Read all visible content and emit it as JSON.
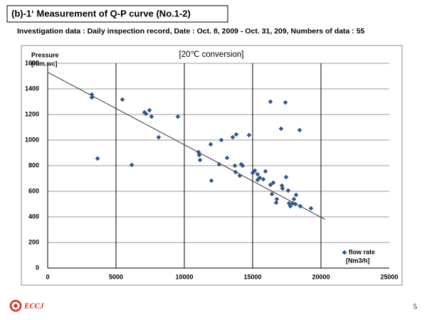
{
  "header": {
    "title": "(b)-1‘ Measurement of Q-P curve (No.1-2)",
    "subtitle": "Investigation data :   Daily inspection record, Date : Oct. 8, 2009 -  Oct. 31, 209, Numbers of data : 55"
  },
  "chart_data": {
    "type": "scatter",
    "title": "[20℃ conversion]",
    "y_label": "Pressure",
    "y_unit": "[mm.wc]",
    "legend_unit": "[Nm3/h]",
    "legend": "lower right",
    "xlim": [
      0,
      25000
    ],
    "ylim": [
      0,
      1600
    ],
    "xticks": [
      0,
      5000,
      10000,
      15000,
      20000,
      25000
    ],
    "yticks": [
      0,
      200,
      400,
      600,
      800,
      1000,
      1200,
      1400,
      1600
    ],
    "grid": true,
    "x_grid_color": "#000000",
    "y_grid_color": "#999999",
    "series": [
      {
        "name": "flow rate",
        "color": "#2e5a8e",
        "x": [
          3230,
          3230,
          3650,
          5470,
          6150,
          7080,
          7190,
          7450,
          7600,
          8120,
          9530,
          11040,
          11090,
          11150,
          11930,
          11980,
          12550,
          12710,
          13130,
          13540,
          13700,
          13750,
          13800,
          14060,
          14170,
          14270,
          14740,
          15000,
          15160,
          15360,
          15360,
          15520,
          15780,
          15940,
          16300,
          16300,
          16510,
          16410,
          16770,
          16720,
          17080,
          17140,
          17190,
          17400,
          17450,
          17600,
          17660,
          17760,
          17920,
          18020,
          18180,
          18130,
          18440,
          18490,
          19270
        ],
        "y": [
          1356,
          1333,
          856,
          1317,
          806,
          1217,
          1206,
          1233,
          1183,
          1022,
          1183,
          906,
          883,
          844,
          967,
          683,
          811,
          1000,
          861,
          1022,
          800,
          750,
          1044,
          722,
          811,
          800,
          1039,
          744,
          761,
          689,
          733,
          706,
          694,
          756,
          1300,
          650,
          667,
          578,
          539,
          511,
          1089,
          644,
          622,
          1294,
          711,
          606,
          506,
          483,
          506,
          539,
          572,
          500,
          1078,
          483,
          467
        ]
      }
    ],
    "trendline": {
      "color": "#333333",
      "x": [
        0,
        20300
      ],
      "y": [
        1530,
        380
      ]
    }
  },
  "footer": {
    "logo_text": "ECCJ",
    "page_number": "5"
  }
}
